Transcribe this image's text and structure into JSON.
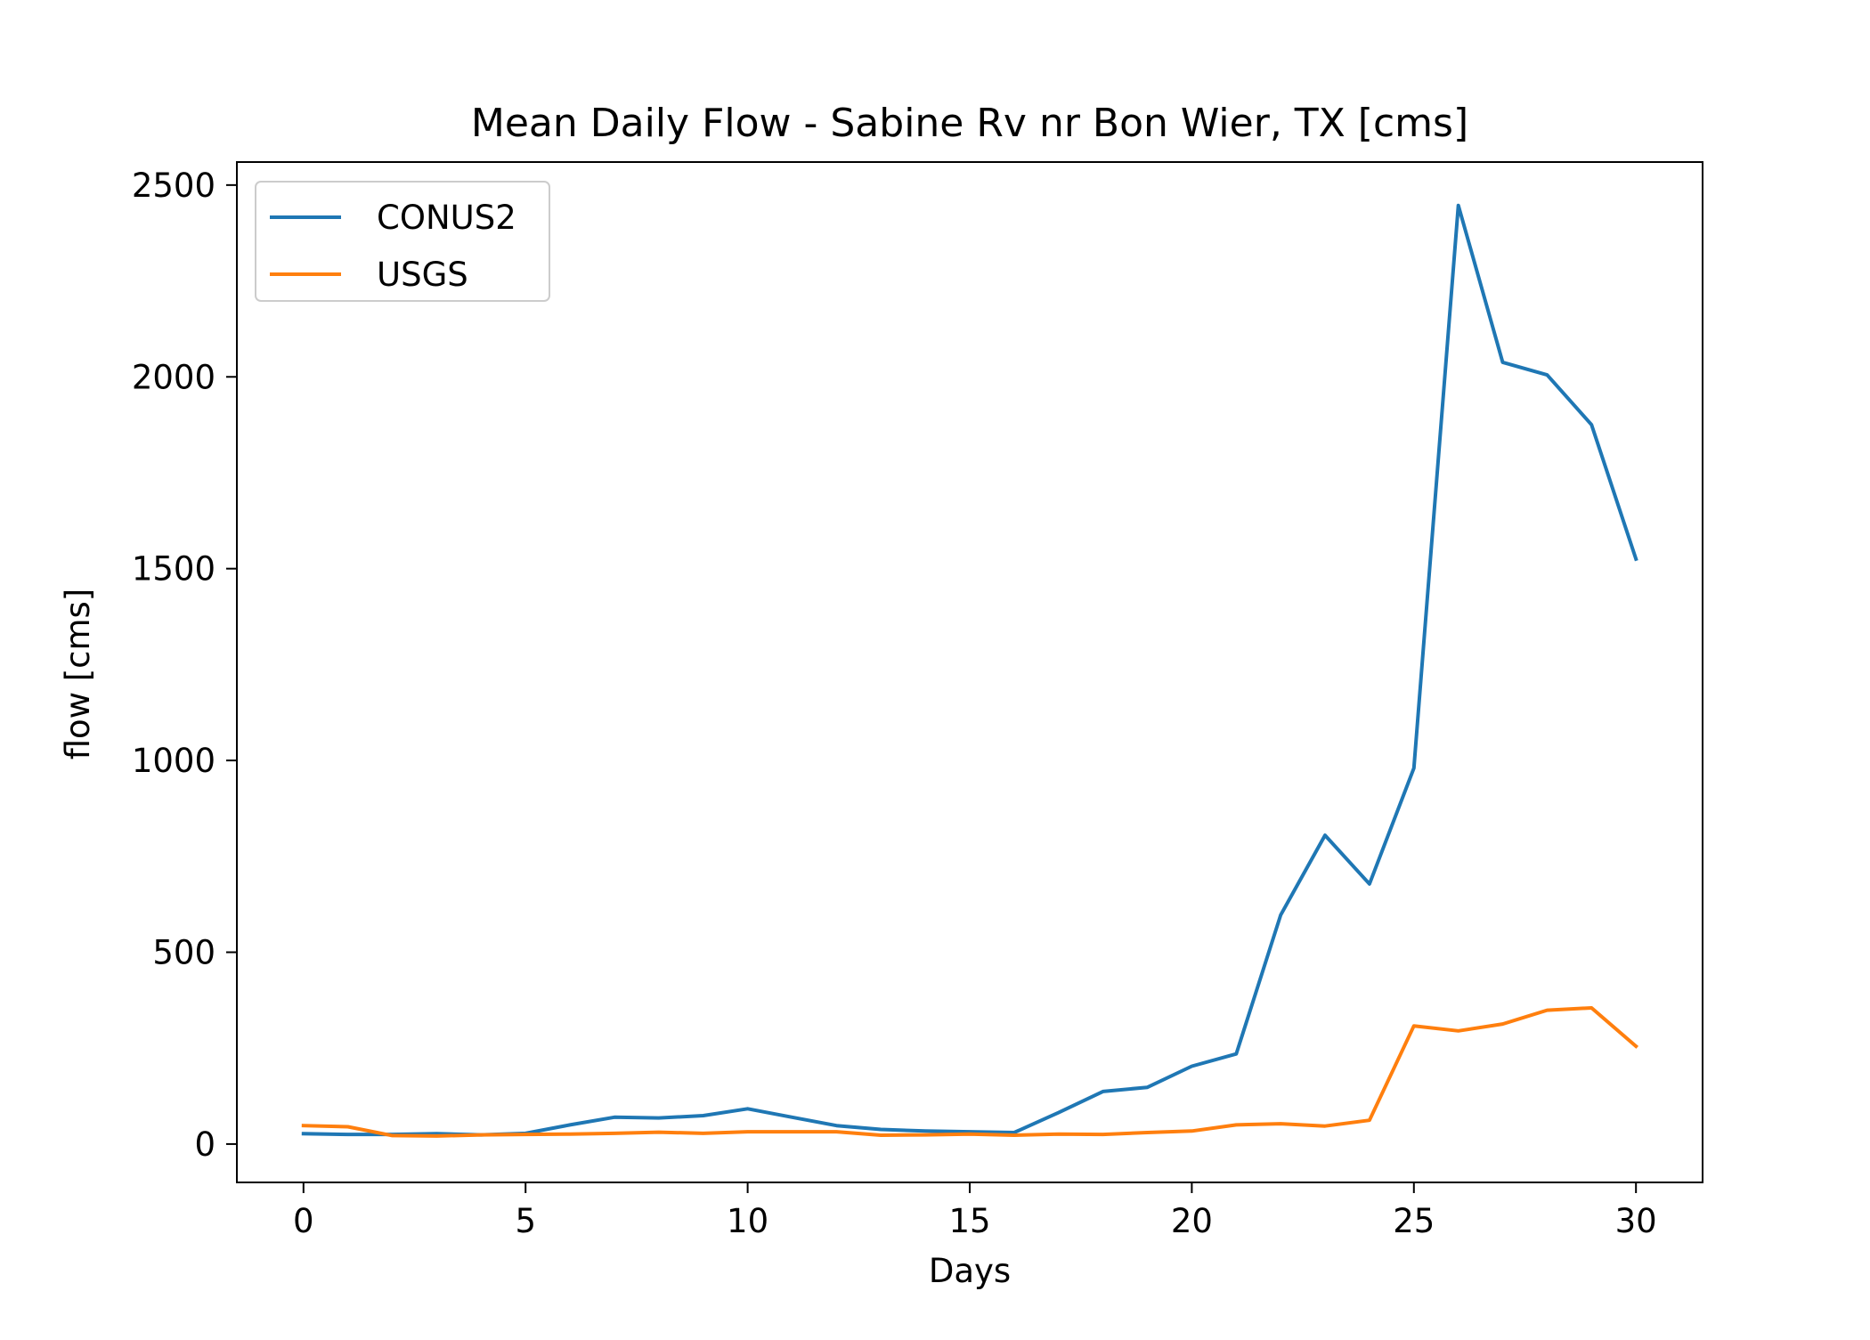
{
  "chart_data": {
    "type": "line",
    "title": "Mean Daily Flow - Sabine Rv nr Bon Wier, TX [cms]",
    "xlabel": "Days",
    "ylabel": "flow [cms]",
    "xlim": [
      -1.5,
      31.5
    ],
    "ylim": [
      -100,
      2560
    ],
    "xticks": [
      0,
      5,
      10,
      15,
      20,
      25,
      30
    ],
    "yticks": [
      0,
      500,
      1000,
      1500,
      2000,
      2500
    ],
    "grid": false,
    "legend_position": "top-left",
    "x": [
      0,
      1,
      2,
      3,
      4,
      5,
      6,
      7,
      8,
      9,
      10,
      11,
      12,
      13,
      14,
      15,
      16,
      17,
      18,
      19,
      20,
      21,
      22,
      23,
      24,
      25,
      26,
      27,
      28,
      29,
      30
    ],
    "series": [
      {
        "name": "CONUS2",
        "color": "#1f77b4",
        "values": [
          27,
          25,
          25,
          27,
          24,
          28,
          50,
          70,
          68,
          74,
          92,
          70,
          48,
          38,
          34,
          32,
          30,
          82,
          137,
          148,
          203,
          235,
          597,
          805,
          678,
          980,
          2447,
          2038,
          2005,
          1875,
          1525
        ]
      },
      {
        "name": "USGS",
        "color": "#ff7f0e",
        "values": [
          48,
          45,
          22,
          21,
          24,
          25,
          26,
          28,
          31,
          28,
          32,
          32,
          32,
          23,
          24,
          26,
          23,
          26,
          25,
          30,
          34,
          50,
          53,
          47,
          62,
          308,
          295,
          313,
          349,
          355,
          255
        ]
      }
    ]
  }
}
